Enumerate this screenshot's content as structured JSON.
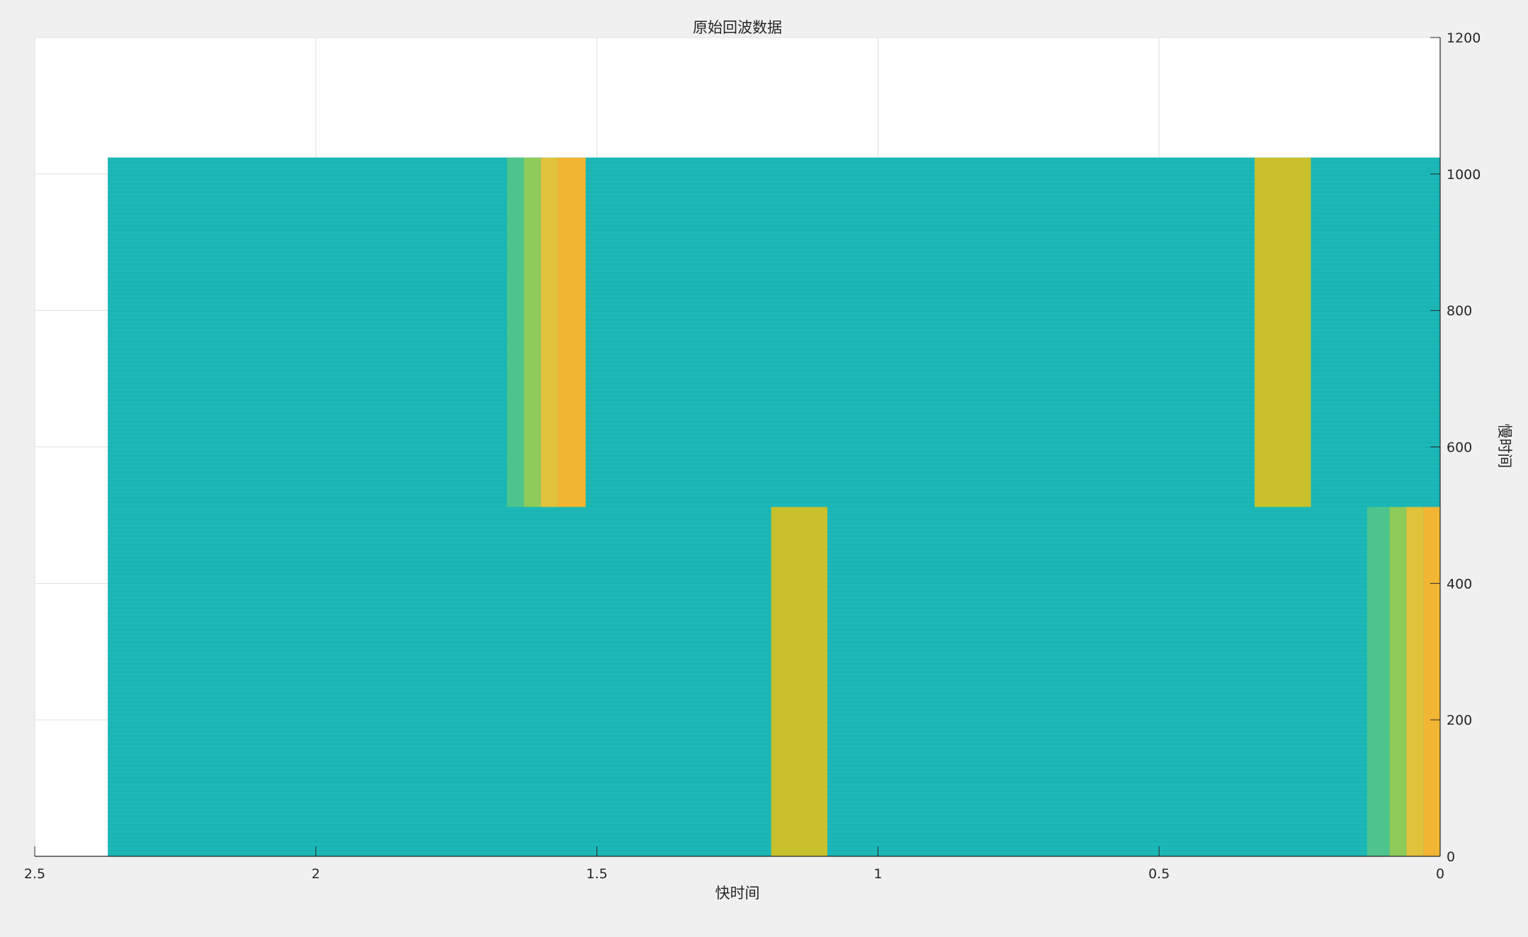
{
  "chart_data": {
    "type": "heatmap",
    "title": "原始回波数据",
    "xlabel": "快时间",
    "ylabel": "慢时间",
    "x_reversed": true,
    "y_axis_location": "right",
    "xlim": [
      0,
      2.5
    ],
    "ylim": [
      0,
      1200
    ],
    "grid": true,
    "xticks": [
      {
        "value": 2.5,
        "label": "2.5"
      },
      {
        "value": 2,
        "label": "2"
      },
      {
        "value": 1.5,
        "label": "1.5"
      },
      {
        "value": 1,
        "label": "1"
      },
      {
        "value": 0.5,
        "label": "0.5"
      },
      {
        "value": 0,
        "label": "0"
      }
    ],
    "yticks": [
      {
        "value": 0,
        "label": "0"
      },
      {
        "value": 200,
        "label": "200"
      },
      {
        "value": 400,
        "label": "400"
      },
      {
        "value": 600,
        "label": "600"
      },
      {
        "value": 800,
        "label": "800"
      },
      {
        "value": 1000,
        "label": "1000"
      },
      {
        "value": 1200,
        "label": "1200"
      }
    ],
    "background_color": "#1cb8b6",
    "image_extent": {
      "x": [
        0,
        2.37
      ],
      "y": [
        0,
        1024
      ]
    },
    "segments": [
      {
        "y": [
          512,
          1024
        ],
        "echoes": [
          {
            "x": [
              1.52,
              1.57
            ],
            "color": "#f2b634"
          },
          {
            "x": [
              1.57,
              1.6
            ],
            "color": "#e1c23b"
          },
          {
            "x": [
              1.6,
              1.63
            ],
            "color": "#8ecb5a"
          },
          {
            "x": [
              1.63,
              1.66
            ],
            "color": "#4ec48c"
          },
          {
            "x": [
              0.23,
              0.33
            ],
            "color": "#c8c12d"
          }
        ]
      },
      {
        "y": [
          0,
          512
        ],
        "echoes": [
          {
            "x": [
              1.09,
              1.19
            ],
            "color": "#c8c12d"
          },
          {
            "x": [
              0,
              0.03
            ],
            "color": "#f2b634"
          },
          {
            "x": [
              0.03,
              0.06
            ],
            "color": "#e1c23b"
          },
          {
            "x": [
              0.06,
              0.09
            ],
            "color": "#8ecb5a"
          },
          {
            "x": [
              0.09,
              0.13
            ],
            "color": "#4ec48c"
          }
        ]
      }
    ]
  }
}
